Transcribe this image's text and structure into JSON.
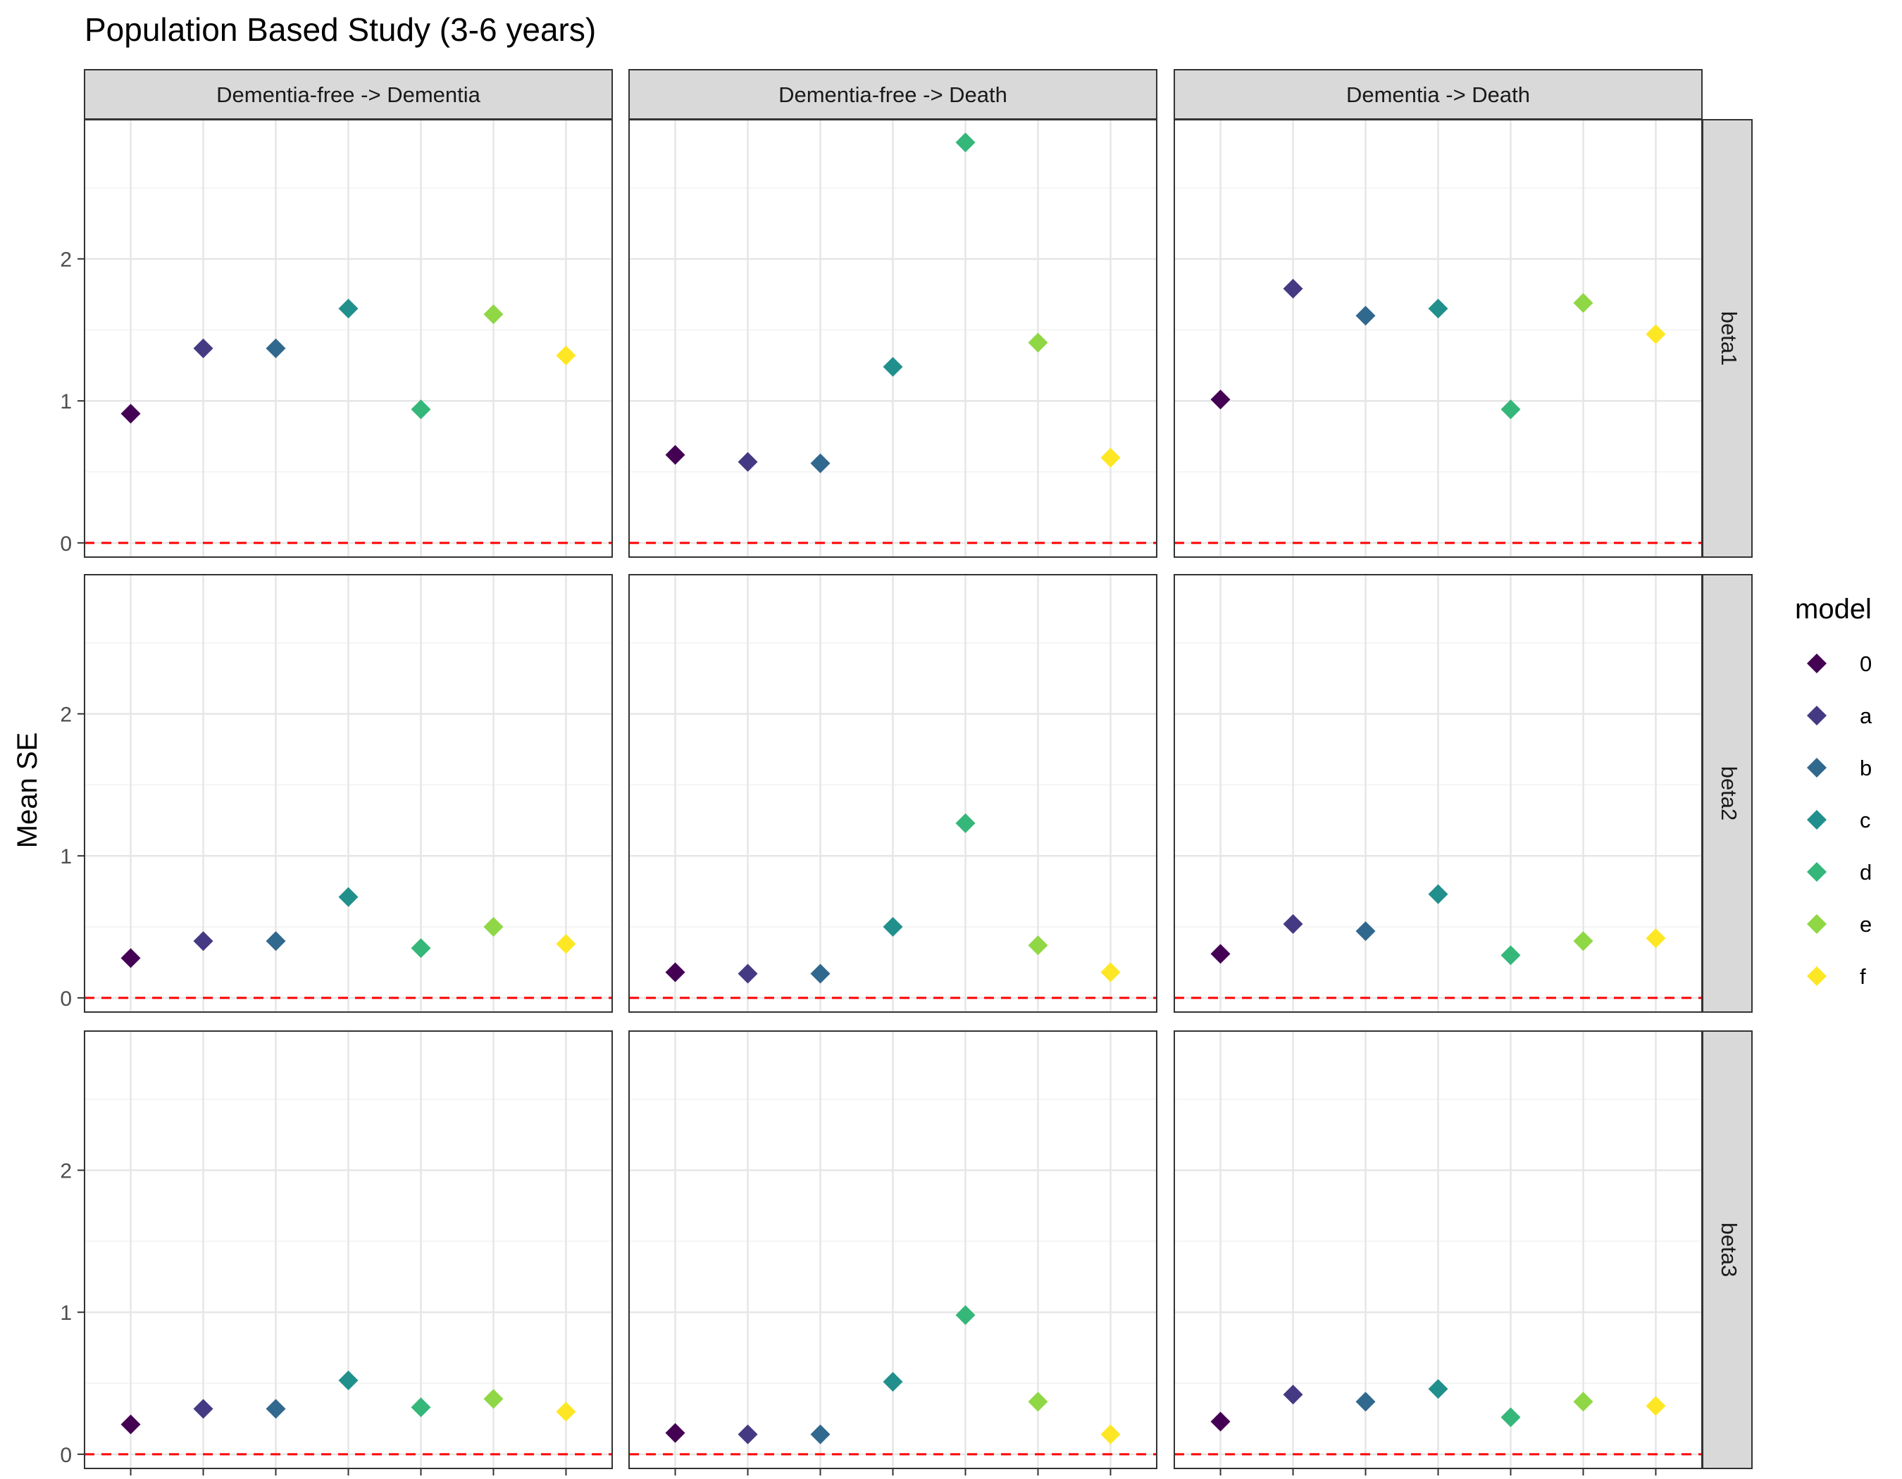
{
  "chart_data": {
    "type": "scatter",
    "title": "Population Based Study (3-6 years)",
    "xlabel": "",
    "ylabel": "Mean SE",
    "ylim": [
      -0.1,
      2.98
    ],
    "yticks": [
      0,
      1,
      2
    ],
    "grid": true,
    "reference_line": {
      "y": 0,
      "color": "#ff0000",
      "style": "dashed"
    },
    "col_facets": [
      "Dementia-free -> Dementia",
      "Dementia-free -> Death",
      "Dementia -> Death"
    ],
    "row_facets": [
      "beta1",
      "beta2",
      "beta3"
    ],
    "legend": {
      "title": "model",
      "position": "right"
    },
    "categories": [
      "0",
      "a",
      "b",
      "c",
      "d",
      "e",
      "f"
    ],
    "colors": [
      "#440154",
      "#443A83",
      "#31688E",
      "#21908C",
      "#35B779",
      "#8FD744",
      "#FDE725"
    ],
    "panels": [
      {
        "row": "beta1",
        "col": "Dementia-free -> Dementia",
        "values": [
          0.91,
          1.37,
          1.37,
          1.65,
          0.94,
          1.61,
          1.32
        ]
      },
      {
        "row": "beta1",
        "col": "Dementia-free -> Death",
        "values": [
          0.62,
          0.57,
          0.56,
          1.24,
          2.82,
          1.41,
          0.6
        ]
      },
      {
        "row": "beta1",
        "col": "Dementia -> Death",
        "values": [
          1.01,
          1.79,
          1.6,
          1.65,
          0.94,
          1.69,
          1.47
        ]
      },
      {
        "row": "beta2",
        "col": "Dementia-free -> Dementia",
        "values": [
          0.28,
          0.4,
          0.4,
          0.71,
          0.35,
          0.5,
          0.38
        ]
      },
      {
        "row": "beta2",
        "col": "Dementia-free -> Death",
        "values": [
          0.18,
          0.17,
          0.17,
          0.5,
          1.23,
          0.37,
          0.18
        ]
      },
      {
        "row": "beta2",
        "col": "Dementia -> Death",
        "values": [
          0.31,
          0.52,
          0.47,
          0.73,
          0.3,
          0.4,
          0.42
        ]
      },
      {
        "row": "beta3",
        "col": "Dementia-free -> Dementia",
        "values": [
          0.21,
          0.32,
          0.32,
          0.52,
          0.33,
          0.39,
          0.3
        ]
      },
      {
        "row": "beta3",
        "col": "Dementia-free -> Death",
        "values": [
          0.15,
          0.14,
          0.14,
          0.51,
          0.98,
          0.37,
          0.14
        ]
      },
      {
        "row": "beta3",
        "col": "Dementia -> Death",
        "values": [
          0.23,
          0.42,
          0.37,
          0.46,
          0.26,
          0.37,
          0.34
        ]
      }
    ]
  }
}
